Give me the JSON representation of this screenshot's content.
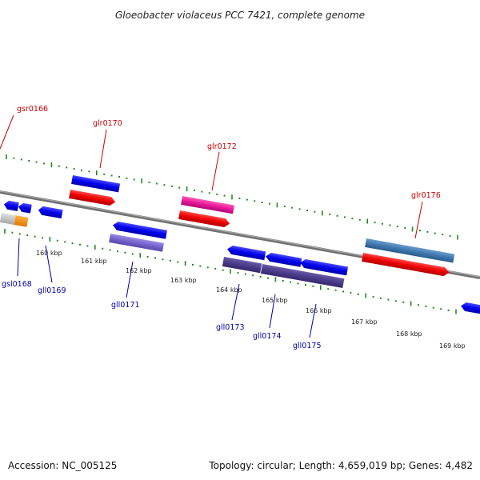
{
  "title": "Gloeobacter violaceus PCC 7421, complete genome",
  "footer": {
    "accession": "Accession: NC_005125",
    "summary": "Topology: circular; Length: 4,659,019 bp; Genes: 4,482"
  },
  "colors": {
    "forward_label": "#cc0000",
    "reverse_label": "#0000aa",
    "tick": "#228822",
    "backbone": "#888888"
  },
  "scale_labels": [
    "160 kbp",
    "161 kbp",
    "162 kbp",
    "163 kbp",
    "164 kbp",
    "165 kbp",
    "166 kbp",
    "167 kbp",
    "168 kbp",
    "169 kbp"
  ],
  "forward_genes": [
    {
      "label": "gsr0166",
      "color": "#cc0000"
    },
    {
      "label": "glr0170",
      "color": "#cc0000"
    },
    {
      "label": "glr0172",
      "color": "#cc0000"
    },
    {
      "label": "glr0176",
      "color": "#cc0000"
    }
  ],
  "reverse_genes": [
    {
      "label": "gsl0168",
      "color": "#0000aa"
    },
    {
      "label": "gll0169",
      "color": "#0000aa"
    },
    {
      "label": "gll0171",
      "color": "#0000aa"
    },
    {
      "label": "gll0173",
      "color": "#0000aa"
    },
    {
      "label": "gll0174",
      "color": "#0000aa"
    },
    {
      "label": "gll0175",
      "color": "#0000aa"
    }
  ]
}
